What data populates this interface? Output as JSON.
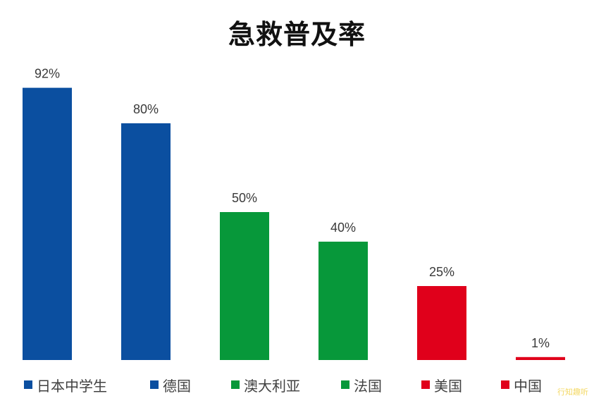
{
  "chart_data": {
    "type": "bar",
    "title": "急救普及率",
    "categories": [
      "日本中学生",
      "德国",
      "澳大利亚",
      "法国",
      "美国",
      "中国"
    ],
    "values": [
      92,
      80,
      50,
      40,
      25,
      1
    ],
    "value_labels": [
      "92%",
      "80%",
      "50%",
      "40%",
      "25%",
      "1%"
    ],
    "colors": [
      "#0b4fa0",
      "#0b4fa0",
      "#07983a",
      "#07983a",
      "#e0001b",
      "#e0001b"
    ],
    "unit": "%",
    "ylim": [
      0,
      100
    ],
    "grid": false,
    "legend_position": "bottom"
  },
  "watermark": "行知趣听"
}
